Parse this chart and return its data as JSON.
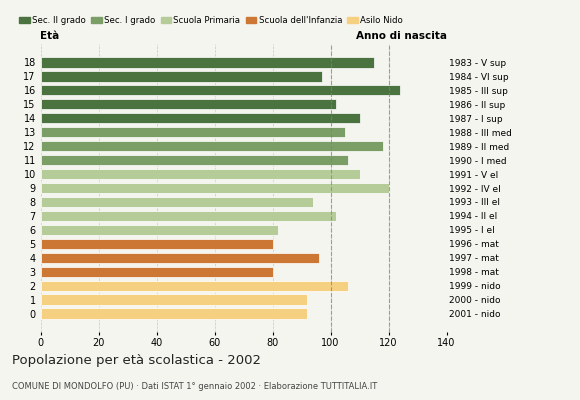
{
  "ages": [
    18,
    17,
    16,
    15,
    14,
    13,
    12,
    11,
    10,
    9,
    8,
    7,
    6,
    5,
    4,
    3,
    2,
    1,
    0
  ],
  "values": [
    115,
    97,
    124,
    102,
    110,
    105,
    118,
    106,
    110,
    120,
    94,
    102,
    82,
    80,
    96,
    80,
    106,
    92,
    92
  ],
  "right_labels": [
    "1983 - V sup",
    "1984 - VI sup",
    "1985 - III sup",
    "1986 - II sup",
    "1987 - I sup",
    "1988 - III med",
    "1989 - II med",
    "1990 - I med",
    "1991 - V el",
    "1992 - IV el",
    "1993 - III el",
    "1994 - II el",
    "1995 - I el",
    "1996 - mat",
    "1997 - mat",
    "1998 - mat",
    "1999 - nido",
    "2000 - nido",
    "2001 - nido"
  ],
  "bar_colors": [
    "#4a7340",
    "#4a7340",
    "#4a7340",
    "#4a7340",
    "#4a7340",
    "#7a9e65",
    "#7a9e65",
    "#7a9e65",
    "#b5cc99",
    "#b5cc99",
    "#b5cc99",
    "#b5cc99",
    "#b5cc99",
    "#cc7733",
    "#cc7733",
    "#cc7733",
    "#f5d080",
    "#f5d080",
    "#f5d080"
  ],
  "title": "Popolazione per età scolastica - 2002",
  "subtitle": "COMUNE DI MONDOLFO (PU) · Dati ISTAT 1° gennaio 2002 · Elaborazione TUTTITALIA.IT",
  "xlabel_left": "Età",
  "xlabel_right": "Anno di nascita",
  "xlim": [
    0,
    140
  ],
  "xticks": [
    0,
    20,
    40,
    60,
    80,
    100,
    120,
    140
  ],
  "legend_labels": [
    "Sec. II grado",
    "Sec. I grado",
    "Scuola Primaria",
    "Scuola dell'Infanzia",
    "Asilo Nido"
  ],
  "legend_colors": [
    "#4a7340",
    "#7a9e65",
    "#b5cc99",
    "#cc7733",
    "#f5d080"
  ],
  "dashed_lines": [
    100,
    120
  ],
  "background_color": "#f5f5f0"
}
